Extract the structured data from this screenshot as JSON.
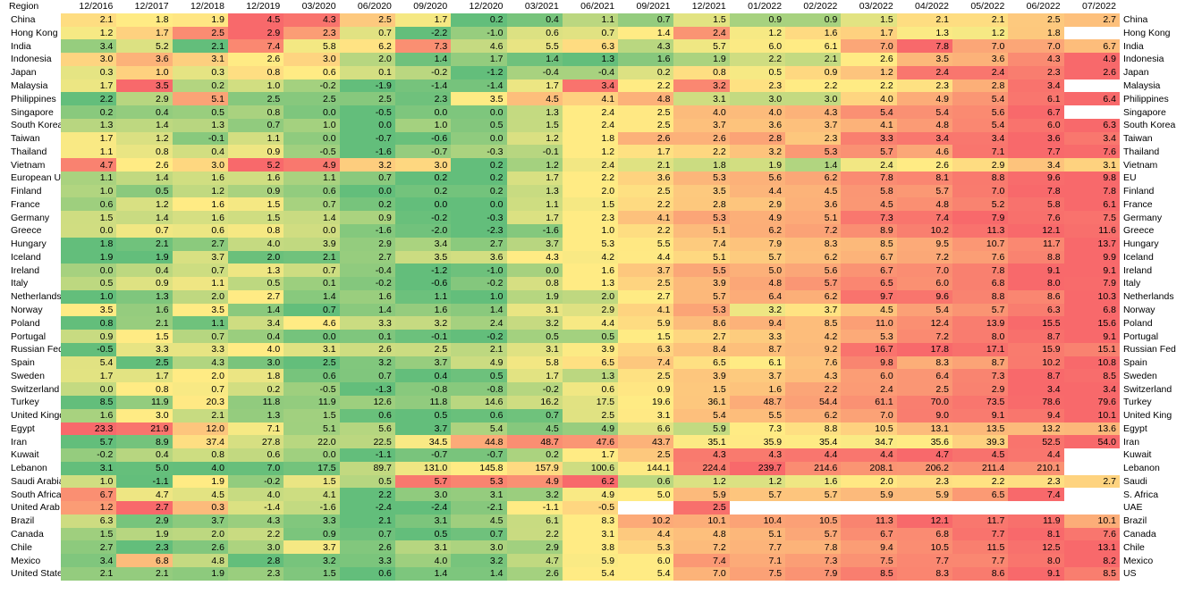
{
  "chart_data": {
    "type": "heatmap",
    "corner_label": "Region",
    "columns": [
      "12/2016",
      "12/2017",
      "12/2018",
      "12/2019",
      "03/2020",
      "06/2020",
      "09/2020",
      "12/2020",
      "03/2021",
      "06/2021",
      "09/2021",
      "12/2021",
      "01/2022",
      "02/2022",
      "03/2022",
      "04/2022",
      "05/2022",
      "06/2022",
      "07/2022"
    ],
    "rows": [
      {
        "label": "China",
        "right_label": "China",
        "values": [
          2.1,
          1.8,
          1.9,
          4.5,
          4.3,
          2.5,
          1.7,
          0.2,
          0.4,
          1.1,
          0.7,
          1.5,
          0.9,
          0.9,
          1.5,
          2.1,
          2.1,
          2.5,
          2.7
        ]
      },
      {
        "label": "Hong Kong",
        "right_label": "Hong Kong",
        "values": [
          1.2,
          1.7,
          2.5,
          2.9,
          2.3,
          0.7,
          -2.2,
          -1.0,
          0.6,
          0.7,
          1.4,
          2.4,
          1.2,
          1.6,
          1.7,
          1.3,
          1.2,
          1.8,
          null
        ]
      },
      {
        "label": "India",
        "right_label": "India",
        "values": [
          3.4,
          5.2,
          2.1,
          7.4,
          5.8,
          6.2,
          7.3,
          4.6,
          5.5,
          6.3,
          4.3,
          5.7,
          6.0,
          6.1,
          7.0,
          7.8,
          7.0,
          7.0,
          6.7
        ]
      },
      {
        "label": "Indonesia",
        "right_label": "Indonesia",
        "values": [
          3.0,
          3.6,
          3.1,
          2.6,
          3.0,
          2.0,
          1.4,
          1.7,
          1.4,
          1.3,
          1.6,
          1.9,
          2.2,
          2.1,
          2.6,
          3.5,
          3.6,
          4.3,
          4.9
        ]
      },
      {
        "label": "Japan",
        "right_label": "Japan",
        "values": [
          0.3,
          1.0,
          0.3,
          0.8,
          0.6,
          0.1,
          -0.2,
          -1.2,
          -0.4,
          -0.4,
          0.2,
          0.8,
          0.5,
          0.9,
          1.2,
          2.4,
          2.4,
          2.3,
          2.6
        ]
      },
      {
        "label": "Malaysia",
        "right_label": "Malaysia",
        "values": [
          1.7,
          3.5,
          0.2,
          1.0,
          -0.2,
          -1.9,
          -1.4,
          -1.4,
          1.7,
          3.4,
          2.2,
          3.2,
          2.3,
          2.2,
          2.2,
          2.3,
          2.8,
          3.4,
          null
        ]
      },
      {
        "label": "Philippines",
        "right_label": "Philippines",
        "values": [
          2.2,
          2.9,
          5.1,
          2.5,
          2.5,
          2.5,
          2.3,
          3.5,
          4.5,
          4.1,
          4.8,
          3.1,
          3.0,
          3.0,
          4.0,
          4.9,
          5.4,
          6.1,
          6.4
        ]
      },
      {
        "label": "Singapore",
        "right_label": "Singapore",
        "values": [
          0.2,
          0.4,
          0.5,
          0.8,
          0.0,
          -0.5,
          0.0,
          0.0,
          1.3,
          2.4,
          2.5,
          4.0,
          4.0,
          4.3,
          5.4,
          5.4,
          5.6,
          6.7,
          null
        ]
      },
      {
        "label": "South Korea",
        "right_label": "South Korea",
        "values": [
          1.3,
          1.4,
          1.3,
          0.7,
          1.0,
          0.0,
          1.0,
          0.5,
          1.5,
          2.4,
          2.5,
          3.7,
          3.6,
          3.7,
          4.1,
          4.8,
          5.4,
          6.0,
          6.3
        ]
      },
      {
        "label": "Taiwan",
        "right_label": "Taiwan",
        "values": [
          1.7,
          1.2,
          -0.1,
          1.1,
          0.0,
          -0.7,
          -0.6,
          0.0,
          1.2,
          1.8,
          2.6,
          2.6,
          2.8,
          2.3,
          3.3,
          3.4,
          3.4,
          3.6,
          3.4
        ]
      },
      {
        "label": "Thailand",
        "right_label": "Thailand",
        "values": [
          1.1,
          0.8,
          0.4,
          0.9,
          -0.5,
          -1.6,
          -0.7,
          -0.3,
          -0.1,
          1.2,
          1.7,
          2.2,
          3.2,
          5.3,
          5.7,
          4.6,
          7.1,
          7.7,
          7.6
        ]
      },
      {
        "label": "Vietnam",
        "right_label": "Vietnam",
        "values": [
          4.7,
          2.6,
          3.0,
          5.2,
          4.9,
          3.2,
          3.0,
          0.2,
          1.2,
          2.4,
          2.1,
          1.8,
          1.9,
          1.4,
          2.4,
          2.6,
          2.9,
          3.4,
          3.1
        ]
      },
      {
        "label": "European Union",
        "right_label": "EU",
        "values": [
          1.1,
          1.4,
          1.6,
          1.6,
          1.1,
          0.7,
          0.2,
          0.2,
          1.7,
          2.2,
          3.6,
          5.3,
          5.6,
          6.2,
          7.8,
          8.1,
          8.8,
          9.6,
          9.8
        ]
      },
      {
        "label": "Finland",
        "right_label": "Finland",
        "values": [
          1.0,
          0.5,
          1.2,
          0.9,
          0.6,
          0.0,
          0.2,
          0.2,
          1.3,
          2.0,
          2.5,
          3.5,
          4.4,
          4.5,
          5.8,
          5.7,
          7.0,
          7.8,
          7.8
        ]
      },
      {
        "label": "France",
        "right_label": "France",
        "values": [
          0.6,
          1.2,
          1.6,
          1.5,
          0.7,
          0.2,
          0.0,
          0.0,
          1.1,
          1.5,
          2.2,
          2.8,
          2.9,
          3.6,
          4.5,
          4.8,
          5.2,
          5.8,
          6.1
        ]
      },
      {
        "label": "Germany",
        "right_label": "Germany",
        "values": [
          1.5,
          1.4,
          1.6,
          1.5,
          1.4,
          0.9,
          -0.2,
          -0.3,
          1.7,
          2.3,
          4.1,
          5.3,
          4.9,
          5.1,
          7.3,
          7.4,
          7.9,
          7.6,
          7.5
        ]
      },
      {
        "label": "Greece",
        "right_label": "Greece",
        "values": [
          0.0,
          0.7,
          0.6,
          0.8,
          0.0,
          -1.6,
          -2.0,
          -2.3,
          -1.6,
          1.0,
          2.2,
          5.1,
          6.2,
          7.2,
          8.9,
          10.2,
          11.3,
          12.1,
          11.6
        ]
      },
      {
        "label": "Hungary",
        "right_label": "Hungary",
        "values": [
          1.8,
          2.1,
          2.7,
          4.0,
          3.9,
          2.9,
          3.4,
          2.7,
          3.7,
          5.3,
          5.5,
          7.4,
          7.9,
          8.3,
          8.5,
          9.5,
          10.7,
          11.7,
          13.7
        ]
      },
      {
        "label": "Iceland",
        "right_label": "Iceland",
        "values": [
          1.9,
          1.9,
          3.7,
          2.0,
          2.1,
          2.7,
          3.5,
          3.6,
          4.3,
          4.2,
          4.4,
          5.1,
          5.7,
          6.2,
          6.7,
          7.2,
          7.6,
          8.8,
          9.9
        ]
      },
      {
        "label": "Ireland",
        "right_label": "Ireland",
        "values": [
          0.0,
          0.4,
          0.7,
          1.3,
          0.7,
          -0.4,
          -1.2,
          -1.0,
          0.0,
          1.6,
          3.7,
          5.5,
          5.0,
          5.6,
          6.7,
          7.0,
          7.8,
          9.1,
          9.1
        ]
      },
      {
        "label": "Italy",
        "right_label": "Italy",
        "values": [
          0.5,
          0.9,
          1.1,
          0.5,
          0.1,
          -0.2,
          -0.6,
          -0.2,
          0.8,
          1.3,
          2.5,
          3.9,
          4.8,
          5.7,
          6.5,
          6.0,
          6.8,
          8.0,
          7.9
        ]
      },
      {
        "label": "Netherlands",
        "right_label": "Netherlands",
        "values": [
          1.0,
          1.3,
          2.0,
          2.7,
          1.4,
          1.6,
          1.1,
          1.0,
          1.9,
          2.0,
          2.7,
          5.7,
          6.4,
          6.2,
          9.7,
          9.6,
          8.8,
          8.6,
          10.3
        ]
      },
      {
        "label": "Norway",
        "right_label": "Norway",
        "values": [
          3.5,
          1.6,
          3.5,
          1.4,
          0.7,
          1.4,
          1.6,
          1.4,
          3.1,
          2.9,
          4.1,
          5.3,
          3.2,
          3.7,
          4.5,
          5.4,
          5.7,
          6.3,
          6.8
        ]
      },
      {
        "label": "Poland",
        "right_label": "Poland",
        "values": [
          0.8,
          2.1,
          1.1,
          3.4,
          4.6,
          3.3,
          3.2,
          2.4,
          3.2,
          4.4,
          5.9,
          8.6,
          9.4,
          8.5,
          11.0,
          12.4,
          13.9,
          15.5,
          15.6
        ]
      },
      {
        "label": "Portugal",
        "right_label": "Portugal",
        "values": [
          0.9,
          1.5,
          0.7,
          0.4,
          0.0,
          0.1,
          -0.1,
          -0.2,
          0.5,
          0.5,
          1.5,
          2.7,
          3.3,
          4.2,
          5.3,
          7.2,
          8.0,
          8.7,
          9.1
        ]
      },
      {
        "label": "Russian Federation",
        "right_label": "Russian Fed",
        "values": [
          -0.5,
          3.3,
          3.3,
          4.0,
          3.1,
          2.6,
          2.5,
          2.1,
          3.1,
          3.9,
          6.3,
          8.4,
          8.7,
          9.2,
          16.7,
          17.8,
          17.1,
          15.9,
          15.1
        ]
      },
      {
        "label": "Spain",
        "right_label": "Spain",
        "values": [
          5.4,
          2.5,
          4.3,
          3.0,
          2.5,
          3.2,
          3.7,
          4.9,
          5.8,
          6.5,
          7.4,
          6.5,
          6.1,
          7.6,
          9.8,
          8.3,
          8.7,
          10.2,
          10.8
        ]
      },
      {
        "label": "Sweden",
        "right_label": "Sweden",
        "values": [
          1.7,
          1.7,
          2.0,
          1.8,
          0.6,
          0.7,
          0.4,
          0.5,
          1.7,
          1.3,
          2.5,
          3.9,
          3.7,
          4.3,
          6.0,
          6.4,
          7.3,
          8.7,
          8.5
        ]
      },
      {
        "label": "Switzerland",
        "right_label": "Switzerland",
        "values": [
          0.0,
          0.8,
          0.7,
          0.2,
          -0.5,
          -1.3,
          -0.8,
          -0.8,
          -0.2,
          0.6,
          0.9,
          1.5,
          1.6,
          2.2,
          2.4,
          2.5,
          2.9,
          3.4,
          3.4
        ]
      },
      {
        "label": "Turkey",
        "right_label": "Turkey",
        "values": [
          8.5,
          11.9,
          20.3,
          11.8,
          11.9,
          12.6,
          11.8,
          14.6,
          16.2,
          17.5,
          19.6,
          36.1,
          48.7,
          54.4,
          61.1,
          70.0,
          73.5,
          78.6,
          79.6
        ]
      },
      {
        "label": "United Kingdom",
        "right_label": "United King",
        "values": [
          1.6,
          3.0,
          2.1,
          1.3,
          1.5,
          0.6,
          0.5,
          0.6,
          0.7,
          2.5,
          3.1,
          5.4,
          5.5,
          6.2,
          7.0,
          9.0,
          9.1,
          9.4,
          10.1
        ]
      },
      {
        "label": "Egypt",
        "right_label": "Egypt",
        "values": [
          23.3,
          21.9,
          12.0,
          7.1,
          5.1,
          5.6,
          3.7,
          5.4,
          4.5,
          4.9,
          6.6,
          5.9,
          7.3,
          8.8,
          10.5,
          13.1,
          13.5,
          13.2,
          13.6
        ]
      },
      {
        "label": "Iran",
        "right_label": "Iran",
        "values": [
          5.7,
          8.9,
          37.4,
          27.8,
          22.0,
          22.5,
          34.5,
          44.8,
          48.7,
          47.6,
          43.7,
          35.1,
          35.9,
          35.4,
          34.7,
          35.6,
          39.3,
          52.5,
          54.0
        ]
      },
      {
        "label": "Kuwait",
        "right_label": "Kuwait",
        "values": [
          -0.2,
          0.4,
          0.8,
          0.6,
          0.0,
          -1.1,
          -0.7,
          -0.7,
          0.2,
          1.7,
          2.5,
          4.3,
          4.3,
          4.4,
          4.4,
          4.7,
          4.5,
          4.4,
          null
        ]
      },
      {
        "label": "Lebanon",
        "right_label": "Lebanon",
        "values": [
          3.1,
          5.0,
          4.0,
          7.0,
          17.5,
          89.7,
          131.0,
          145.8,
          157.9,
          100.6,
          144.1,
          224.4,
          239.7,
          214.6,
          208.1,
          206.2,
          211.4,
          210.1,
          null
        ]
      },
      {
        "label": "Saudi Arabia",
        "right_label": "Saudi",
        "values": [
          1.0,
          -1.1,
          1.9,
          -0.2,
          1.5,
          0.5,
          5.7,
          5.3,
          4.9,
          6.2,
          0.6,
          1.2,
          1.2,
          1.6,
          2.0,
          2.3,
          2.2,
          2.3,
          2.7
        ]
      },
      {
        "label": "South Africa",
        "right_label": "S. Africa",
        "values": [
          6.7,
          4.7,
          4.5,
          4.0,
          4.1,
          2.2,
          3.0,
          3.1,
          3.2,
          4.9,
          5.0,
          5.9,
          5.7,
          5.7,
          5.9,
          5.9,
          6.5,
          7.4,
          null
        ]
      },
      {
        "label": "United Arab Emirates",
        "right_label": "UAE",
        "values": [
          1.2,
          2.7,
          0.3,
          -1.4,
          -1.6,
          -2.4,
          -2.4,
          -2.1,
          -1.1,
          -0.5,
          null,
          2.5,
          null,
          null,
          null,
          null,
          null,
          null,
          null
        ]
      },
      {
        "label": "Brazil",
        "right_label": "Brazil",
        "values": [
          6.3,
          2.9,
          3.7,
          4.3,
          3.3,
          2.1,
          3.1,
          4.5,
          6.1,
          8.3,
          10.2,
          10.1,
          10.4,
          10.5,
          11.3,
          12.1,
          11.7,
          11.9,
          10.1
        ]
      },
      {
        "label": "Canada",
        "right_label": "Canada",
        "values": [
          1.5,
          1.9,
          2.0,
          2.2,
          0.9,
          0.7,
          0.5,
          0.7,
          2.2,
          3.1,
          4.4,
          4.8,
          5.1,
          5.7,
          6.7,
          6.8,
          7.7,
          8.1,
          7.6
        ]
      },
      {
        "label": "Chile",
        "right_label": "Chile",
        "values": [
          2.7,
          2.3,
          2.6,
          3.0,
          3.7,
          2.6,
          3.1,
          3.0,
          2.9,
          3.8,
          5.3,
          7.2,
          7.7,
          7.8,
          9.4,
          10.5,
          11.5,
          12.5,
          13.1
        ]
      },
      {
        "label": "Mexico",
        "right_label": "Mexico",
        "values": [
          3.4,
          6.8,
          4.8,
          2.8,
          3.2,
          3.3,
          4.0,
          3.2,
          4.7,
          5.9,
          6.0,
          7.4,
          7.1,
          7.3,
          7.5,
          7.7,
          7.7,
          8.0,
          8.2
        ]
      },
      {
        "label": "United States",
        "right_label": "US",
        "values": [
          2.1,
          2.1,
          1.9,
          2.3,
          1.5,
          0.6,
          1.4,
          1.4,
          2.6,
          5.4,
          5.4,
          7.0,
          7.5,
          7.9,
          8.5,
          8.3,
          8.6,
          9.1,
          8.5
        ]
      }
    ],
    "color_scale": {
      "low": "#63be7b",
      "mid": "#ffeb84",
      "high": "#f8696b"
    }
  }
}
